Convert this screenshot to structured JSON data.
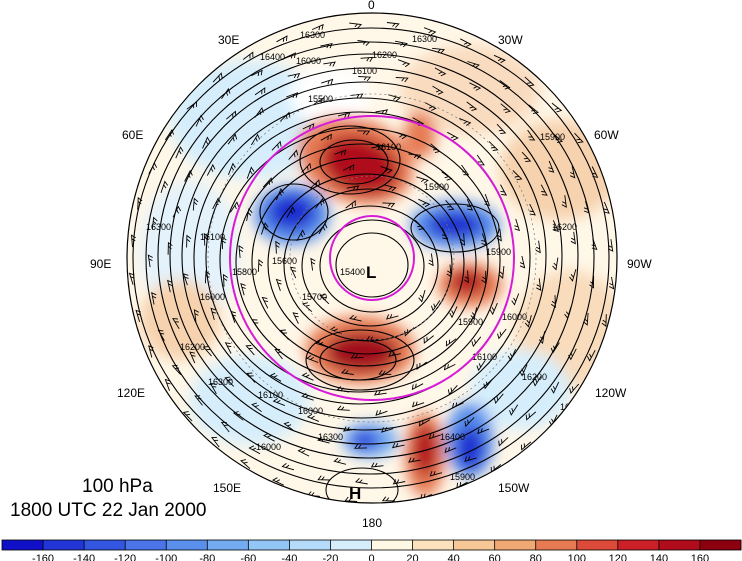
{
  "map": {
    "level_label": "100 hPa",
    "time_label": "1800 UTC 22 Jan 2000",
    "longitude_labels": {
      "top": "0",
      "upper_left": "30E",
      "upper_right": "30W",
      "left_upper": "60E",
      "right_upper": "60W",
      "left": "90E",
      "right": "90W",
      "left_lower": "120E",
      "right_lower": "120W",
      "lower_left": "150E",
      "lower_right": "150W",
      "bottom": "180"
    },
    "pressure_centers": [
      {
        "label": "L",
        "meaning": "low"
      },
      {
        "label": "H",
        "meaning": "high"
      }
    ],
    "contour_labels": [
      "16300",
      "16200",
      "16100",
      "16000",
      "15900",
      "15800",
      "15700",
      "15600",
      "15500",
      "15400",
      "16400"
    ],
    "contour_color": "#000000",
    "highlight_circle_color": "#d81bd8"
  },
  "colorbar": {
    "ticks": [
      "-160",
      "-140",
      "-120",
      "-100",
      "-80",
      "-60",
      "-40",
      "-20",
      "0",
      "20",
      "40",
      "60",
      "80",
      "100",
      "120",
      "140",
      "160"
    ],
    "colors": [
      "#1010c8",
      "#2236d8",
      "#3256e0",
      "#4a74e8",
      "#5a90ec",
      "#74acf2",
      "#92c6f6",
      "#b4dcfa",
      "#d6eefc",
      "#fff8e4",
      "#fbe2bc",
      "#f6c898",
      "#f0a874",
      "#e67a52",
      "#dc4a3a",
      "#cc2028",
      "#b00c1c",
      "#8c0010"
    ]
  }
}
